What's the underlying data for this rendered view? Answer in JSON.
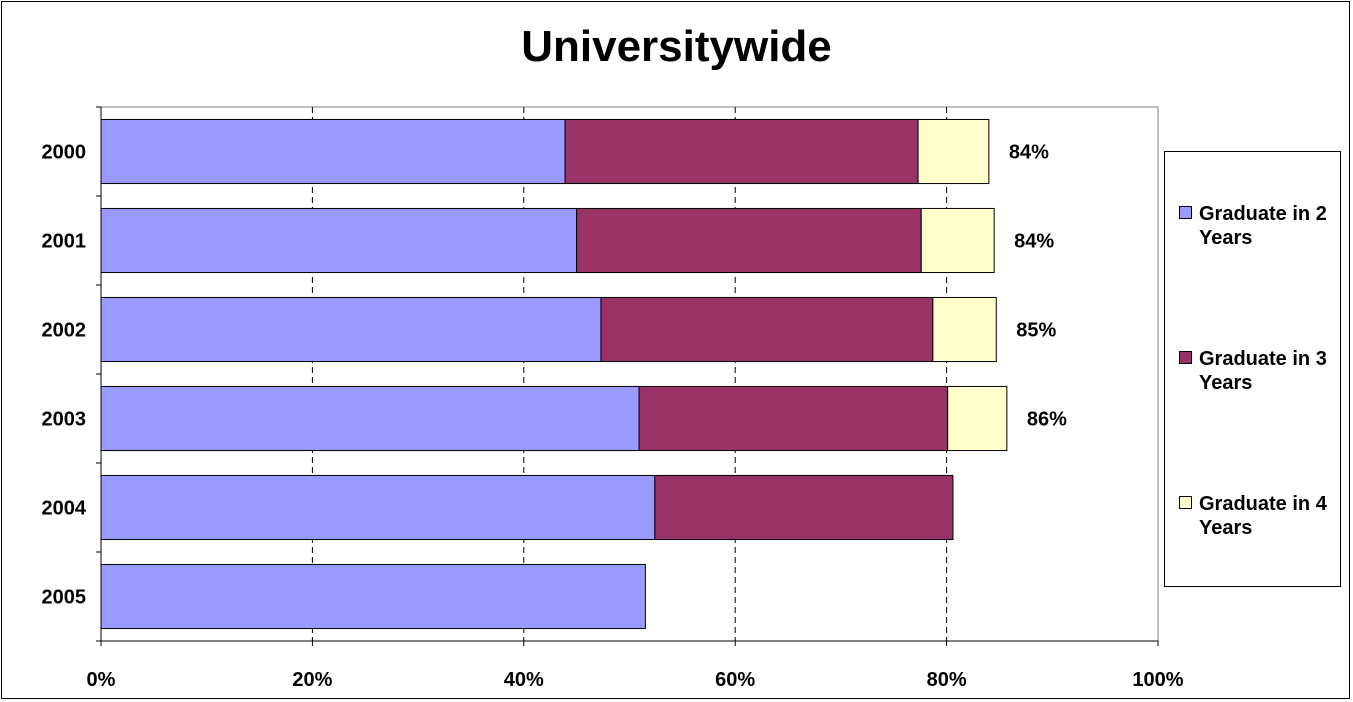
{
  "chart_data": {
    "type": "bar",
    "orientation": "horizontal",
    "stacked": true,
    "title": "Universitywide",
    "categories": [
      "2000",
      "2001",
      "2002",
      "2003",
      "2004",
      "2005"
    ],
    "series": [
      {
        "name": "Graduate in 2 Years",
        "color": "#9999ff",
        "values": [
          43.9,
          45.0,
          47.3,
          50.9,
          52.4,
          51.5
        ]
      },
      {
        "name": "Graduate in 3 Years",
        "color": "#993366",
        "values": [
          33.4,
          32.6,
          31.4,
          29.2,
          28.2,
          0
        ]
      },
      {
        "name": "Graduate in 4 Years",
        "color": "#ffffcc",
        "values": [
          6.7,
          6.9,
          6.0,
          5.6,
          0,
          0
        ]
      }
    ],
    "data_labels": [
      "84%",
      "84%",
      "85%",
      "86%",
      "",
      ""
    ],
    "xlim": [
      0,
      100
    ],
    "x_ticks": [
      0,
      20,
      40,
      60,
      80,
      100
    ],
    "x_tick_labels": [
      "0%",
      "20%",
      "40%",
      "60%",
      "80%",
      "100%"
    ],
    "xlabel": "",
    "ylabel": "",
    "grid": {
      "vertical_dashed": true
    },
    "legend_position": "right"
  }
}
